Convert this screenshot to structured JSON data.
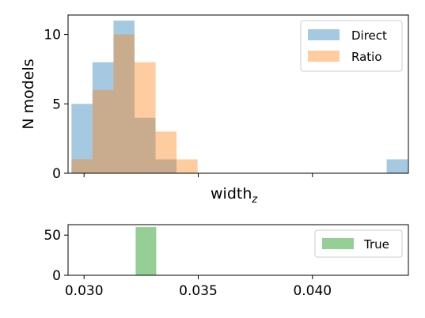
{
  "chart_data": [
    {
      "type": "bar",
      "role": "histogram",
      "ylabel": "N models",
      "xlabel_main": "width",
      "xlabel_sub": "z",
      "xlim": [
        0.0293,
        0.0442
      ],
      "ylim": [
        0,
        11.4
      ],
      "yticks": [
        0,
        5,
        10
      ],
      "xticks": [
        0.03,
        0.035,
        0.04
      ],
      "legend_position": "top-right",
      "series": [
        {
          "name": "Direct",
          "color": "#1f77b4",
          "alpha": 0.4,
          "bins": [
            {
              "x0": 0.02945,
              "x1": 0.03037,
              "count": 5
            },
            {
              "x0": 0.03037,
              "x1": 0.03129,
              "count": 8
            },
            {
              "x0": 0.03129,
              "x1": 0.03221,
              "count": 11
            },
            {
              "x0": 0.03221,
              "x1": 0.03313,
              "count": 4
            },
            {
              "x0": 0.03313,
              "x1": 0.03405,
              "count": 1
            },
            {
              "x0": 0.04325,
              "x1": 0.04417,
              "count": 1
            }
          ]
        },
        {
          "name": "Ratio",
          "color": "#ff7f0e",
          "alpha": 0.4,
          "bins": [
            {
              "x0": 0.02945,
              "x1": 0.03037,
              "count": 1
            },
            {
              "x0": 0.03037,
              "x1": 0.03129,
              "count": 6
            },
            {
              "x0": 0.03129,
              "x1": 0.03221,
              "count": 10
            },
            {
              "x0": 0.03221,
              "x1": 0.03313,
              "count": 8
            },
            {
              "x0": 0.03313,
              "x1": 0.03405,
              "count": 3
            },
            {
              "x0": 0.03405,
              "x1": 0.03497,
              "count": 1
            }
          ]
        }
      ]
    },
    {
      "type": "bar",
      "role": "histogram",
      "xlim": [
        0.0293,
        0.0442
      ],
      "ylim": [
        0,
        63
      ],
      "yticks": [
        0,
        50
      ],
      "xticks": [
        0.03,
        0.035,
        0.04
      ],
      "xtick_labels": [
        "0.030",
        "0.035",
        "0.040"
      ],
      "legend_position": "right",
      "series": [
        {
          "name": "True",
          "color": "#2ca02c",
          "alpha": 0.5,
          "bins": [
            {
              "x0": 0.03226,
              "x1": 0.03316,
              "count": 60
            }
          ]
        }
      ]
    }
  ]
}
